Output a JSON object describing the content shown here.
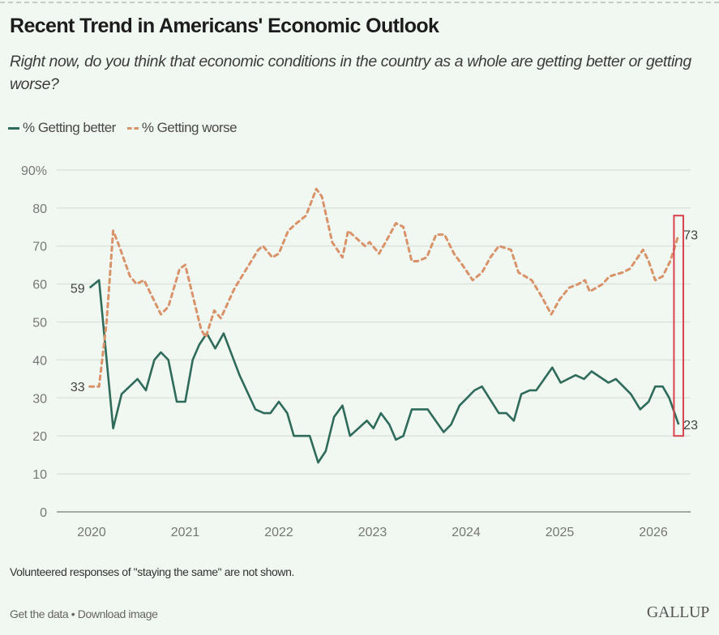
{
  "header": {
    "title": "Recent Trend in Americans' Economic Outlook",
    "subtitle": "Right now, do you think that economic conditions in the country as a whole are getting better or getting worse?"
  },
  "legend": {
    "better": "% Getting better",
    "worse": "% Getting worse"
  },
  "footer": {
    "note": "Volunteered responses of \"staying the same\" are not shown.",
    "get_data": "Get the data",
    "separator": "•",
    "download": "Download image",
    "logo": "GALLUP"
  },
  "colors": {
    "better": "#2e6b5a",
    "worse": "#d9936a",
    "highlight": "#d9434f",
    "grid": "#dde3dd",
    "axis": "#8a8f8a",
    "tick_text": "#777777",
    "label_text": "#444444"
  },
  "chart_data": {
    "type": "line",
    "title": "Recent Trend in Americans' Economic Outlook",
    "xlabel": "",
    "ylabel": "",
    "ylim": [
      0,
      90
    ],
    "xlim": [
      2019.98,
      2026.3
    ],
    "y_ticks": [
      0,
      10,
      20,
      30,
      40,
      50,
      60,
      70,
      80,
      90
    ],
    "y_tick_labels": [
      "0",
      "10",
      "20",
      "30",
      "40",
      "50",
      "60",
      "70",
      "80",
      "90%"
    ],
    "x_ticks": [
      2020,
      2021,
      2022,
      2023,
      2024,
      2025,
      2026
    ],
    "x_tick_labels": [
      "2020",
      "2021",
      "2022",
      "2023",
      "2024",
      "2025",
      "2026"
    ],
    "grid": true,
    "legend_position": "top-left",
    "series": [
      {
        "name": "% Getting better",
        "style": "solid",
        "points": [
          [
            1999.98,
            59
          ],
          [
            2020.08,
            61
          ],
          [
            2020.23,
            22
          ],
          [
            2020.32,
            31
          ],
          [
            2020.49,
            35
          ],
          [
            2020.58,
            32
          ],
          [
            2020.67,
            40
          ],
          [
            2020.74,
            42
          ],
          [
            2020.82,
            40
          ],
          [
            2020.91,
            29
          ],
          [
            2021.0,
            29
          ],
          [
            2021.08,
            40
          ],
          [
            2021.15,
            44
          ],
          [
            2021.23,
            47
          ],
          [
            2021.32,
            43
          ],
          [
            2021.41,
            47
          ],
          [
            2021.58,
            36
          ],
          [
            2021.75,
            27
          ],
          [
            2021.84,
            26
          ],
          [
            2021.91,
            26
          ],
          [
            2022.0,
            29
          ],
          [
            2022.09,
            26
          ],
          [
            2022.16,
            20
          ],
          [
            2022.33,
            20
          ],
          [
            2022.42,
            13
          ],
          [
            2022.5,
            16
          ],
          [
            2022.59,
            25
          ],
          [
            2022.68,
            28
          ],
          [
            2022.76,
            20
          ],
          [
            2022.85,
            22
          ],
          [
            2022.94,
            24
          ],
          [
            2023.01,
            22
          ],
          [
            2023.09,
            26
          ],
          [
            2023.18,
            23
          ],
          [
            2023.25,
            19
          ],
          [
            2023.33,
            20
          ],
          [
            2023.42,
            27
          ],
          [
            2023.59,
            27
          ],
          [
            2023.76,
            21
          ],
          [
            2023.84,
            23
          ],
          [
            2023.93,
            28
          ],
          [
            2024.01,
            30
          ],
          [
            2024.09,
            32
          ],
          [
            2024.17,
            33
          ],
          [
            2024.35,
            26
          ],
          [
            2024.43,
            26
          ],
          [
            2024.51,
            24
          ],
          [
            2024.59,
            31
          ],
          [
            2024.68,
            32
          ],
          [
            2024.75,
            32
          ],
          [
            2024.92,
            38
          ],
          [
            2025.01,
            34
          ],
          [
            2025.17,
            36
          ],
          [
            2025.26,
            35
          ],
          [
            2025.34,
            37
          ],
          [
            2025.52,
            34
          ],
          [
            2025.6,
            35
          ],
          [
            2025.76,
            31
          ],
          [
            2025.86,
            27
          ],
          [
            2025.95,
            29
          ],
          [
            2026.02,
            33
          ],
          [
            2026.1,
            33
          ],
          [
            2026.17,
            30
          ],
          [
            2026.27,
            23
          ]
        ],
        "end_labels": {
          "first": "59",
          "last": "23"
        }
      },
      {
        "name": "% Getting worse",
        "style": "dashed",
        "points": [
          [
            1999.98,
            33
          ],
          [
            2020.08,
            33
          ],
          [
            2020.16,
            50
          ],
          [
            2020.23,
            74
          ],
          [
            2020.28,
            71
          ],
          [
            2020.41,
            62
          ],
          [
            2020.48,
            60
          ],
          [
            2020.56,
            61
          ],
          [
            2020.74,
            52
          ],
          [
            2020.82,
            54
          ],
          [
            2020.94,
            64
          ],
          [
            2021.0,
            65
          ],
          [
            2021.05,
            60
          ],
          [
            2021.17,
            48
          ],
          [
            2021.22,
            46
          ],
          [
            2021.31,
            53
          ],
          [
            2021.38,
            51
          ],
          [
            2021.53,
            59
          ],
          [
            2021.78,
            69
          ],
          [
            2021.83,
            70
          ],
          [
            2021.93,
            67
          ],
          [
            2022.0,
            68
          ],
          [
            2022.1,
            74
          ],
          [
            2022.19,
            76
          ],
          [
            2022.29,
            78
          ],
          [
            2022.4,
            85
          ],
          [
            2022.46,
            83
          ],
          [
            2022.57,
            71
          ],
          [
            2022.68,
            67
          ],
          [
            2022.74,
            74
          ],
          [
            2022.83,
            72
          ],
          [
            2022.92,
            70
          ],
          [
            2022.97,
            71
          ],
          [
            2023.07,
            68
          ],
          [
            2023.14,
            71
          ],
          [
            2023.25,
            76
          ],
          [
            2023.33,
            75
          ],
          [
            2023.42,
            66
          ],
          [
            2023.48,
            66
          ],
          [
            2023.58,
            67
          ],
          [
            2023.68,
            73
          ],
          [
            2023.77,
            73
          ],
          [
            2023.87,
            68
          ],
          [
            2023.96,
            65
          ],
          [
            2024.07,
            61
          ],
          [
            2024.17,
            63
          ],
          [
            2024.26,
            67
          ],
          [
            2024.35,
            70
          ],
          [
            2024.48,
            69
          ],
          [
            2024.56,
            63
          ],
          [
            2024.7,
            61
          ],
          [
            2024.8,
            57
          ],
          [
            2024.91,
            52
          ],
          [
            2025.0,
            56
          ],
          [
            2025.1,
            59
          ],
          [
            2025.2,
            60
          ],
          [
            2025.27,
            61
          ],
          [
            2025.32,
            58
          ],
          [
            2025.46,
            60
          ],
          [
            2025.53,
            62
          ],
          [
            2025.67,
            63
          ],
          [
            2025.75,
            64
          ],
          [
            2025.89,
            69
          ],
          [
            2025.95,
            66
          ],
          [
            2026.02,
            61
          ],
          [
            2026.1,
            62
          ],
          [
            2026.18,
            66
          ],
          [
            2026.27,
            73
          ]
        ],
        "end_labels": {
          "first": "33",
          "last": "73"
        }
      }
    ],
    "annotations": [
      {
        "type": "highlight-box",
        "x_range": [
          2026.22,
          2026.32
        ],
        "y_range": [
          20,
          78
        ],
        "note": "latest data point highlighted"
      }
    ]
  }
}
